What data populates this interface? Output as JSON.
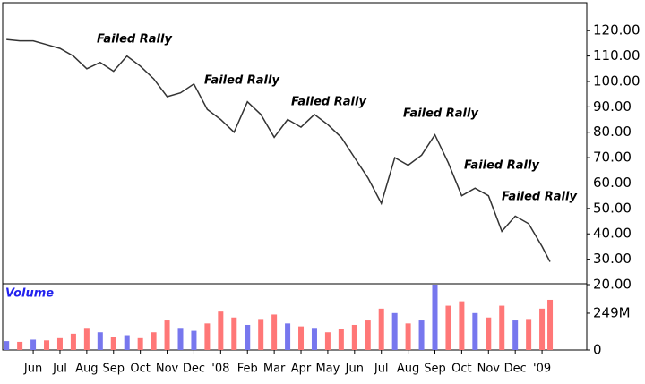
{
  "chart_data": {
    "type": "stock",
    "annotations": [
      "Failed Rally",
      "Failed Rally",
      "Failed Rally",
      "Failed Rally",
      "Failed Rally",
      "Failed Rally"
    ],
    "volume_title": "Volume",
    "x": [
      -1.0,
      -0.5,
      0,
      0.5,
      1,
      1.5,
      2,
      2.5,
      3,
      3.5,
      4,
      4.5,
      5,
      5.5,
      6,
      6.5,
      7,
      7.5,
      8,
      8.5,
      9,
      9.5,
      10,
      10.5,
      11,
      11.5,
      12,
      12.5,
      13,
      13.5,
      14,
      14.5,
      15,
      15.5,
      16,
      16.5,
      17,
      17.5,
      18,
      18.5,
      19,
      19.3
    ],
    "xlim": [
      -1.14,
      20.67
    ],
    "xticks": [
      {
        "value": 0,
        "label": "Jun"
      },
      {
        "value": 1,
        "label": "Jul"
      },
      {
        "value": 2,
        "label": "Aug"
      },
      {
        "value": 3,
        "label": "Sep"
      },
      {
        "value": 4,
        "label": "Oct"
      },
      {
        "value": 5,
        "label": "Nov"
      },
      {
        "value": 6,
        "label": "Dec"
      },
      {
        "value": 7,
        "label": "'08"
      },
      {
        "value": 8,
        "label": "Feb"
      },
      {
        "value": 9,
        "label": "Mar"
      },
      {
        "value": 10,
        "label": "Apr"
      },
      {
        "value": 11,
        "label": "May"
      },
      {
        "value": 12,
        "label": "Jun"
      },
      {
        "value": 13,
        "label": "Jul"
      },
      {
        "value": 14,
        "label": "Aug"
      },
      {
        "value": 15,
        "label": "Sep"
      },
      {
        "value": 16,
        "label": "Oct"
      },
      {
        "value": 17,
        "label": "Nov"
      },
      {
        "value": 18,
        "label": "Dec"
      },
      {
        "value": 19,
        "label": "'09"
      }
    ],
    "price": {
      "color": "#333333",
      "values": [
        116.5,
        116,
        116,
        114.5,
        113,
        110,
        105,
        107.5,
        104,
        110,
        106,
        101,
        94,
        95.5,
        99,
        89,
        85,
        80,
        92,
        87,
        78,
        85,
        82,
        87,
        83,
        78,
        70,
        62,
        52,
        70,
        67,
        71,
        79,
        68,
        55,
        58,
        55,
        41,
        47,
        44,
        35,
        29
      ]
    },
    "ylim": [
      20,
      131
    ],
    "yticks": [
      {
        "value": 20,
        "label": "20.00"
      },
      {
        "value": 30,
        "label": "30.00"
      },
      {
        "value": 40,
        "label": "40.00"
      },
      {
        "value": 50,
        "label": "50.00"
      },
      {
        "value": 60,
        "label": "60.00"
      },
      {
        "value": 70,
        "label": "70.00"
      },
      {
        "value": 80,
        "label": "80.00"
      },
      {
        "value": 90,
        "label": "90.00"
      },
      {
        "value": 100,
        "label": "100.00"
      },
      {
        "value": 110,
        "label": "110.00"
      },
      {
        "value": 120,
        "label": "120.00"
      }
    ],
    "volume": {
      "up_color": "#7777ee",
      "down_color": "#ff7777",
      "values": [
        60,
        55,
        70,
        65,
        80,
        110,
        150,
        120,
        90,
        100,
        80,
        120,
        200,
        150,
        130,
        180,
        260,
        220,
        170,
        210,
        240,
        180,
        160,
        150,
        120,
        140,
        170,
        200,
        280,
        250,
        180,
        200,
        443,
        300,
        330,
        250,
        220,
        300,
        200,
        210,
        280,
        340
      ]
    },
    "y2lim": [
      0,
      443
    ],
    "y2ticks": [
      0,
      {
        "value": 249,
        "label": "249M"
      }
    ]
  }
}
